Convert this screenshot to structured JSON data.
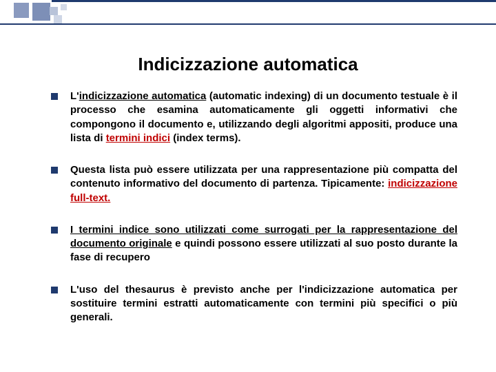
{
  "colors": {
    "accent": "#1f3a6e",
    "highlight": "#c00000",
    "text": "#000000",
    "background": "#ffffff",
    "deco1": "#8a9abf",
    "deco2": "#7d8fb7",
    "deco3": "#b8c3d9",
    "deco4": "#ced6e6",
    "deco5": "#d3dae8"
  },
  "typography": {
    "title_fontsize": 26,
    "body_fontsize": 15,
    "font_family": "Arial"
  },
  "title": "Indicizzazione automatica",
  "bullets": [
    {
      "segments": [
        {
          "text": "L'",
          "bold": true
        },
        {
          "text": "indicizzazione automatica",
          "bold": true,
          "underline": true
        },
        {
          "text": " (automatic indexing) di un documento testuale è il processo che esamina automaticamente gli oggetti informativi che compongono il documento e, utilizzando degli algoritmi appositi, produce una lista di ",
          "bold": true
        },
        {
          "text": "termini indici",
          "bold": true,
          "underline": true,
          "red": true
        },
        {
          "text": " (index terms).",
          "bold": true
        }
      ]
    },
    {
      "segments": [
        {
          "text": "Questa lista può essere utilizzata per una rappresentazione più compatta del contenuto informativo del documento di partenza. Tipicamente: ",
          "bold": true
        },
        {
          "text": "indicizzazione full-text.",
          "bold": true,
          "underline": true,
          "red": true
        }
      ]
    },
    {
      "segments": [
        {
          "text": "I termini indice sono utilizzati come surrogati per la rappresentazione del documento originale",
          "bold": true,
          "underline": true
        },
        {
          "text": " e quindi possono essere utilizzati al suo posto durante la fase di recupero",
          "bold": true
        }
      ]
    },
    {
      "segments": [
        {
          "text": "L'uso del thesaurus è previsto anche per l'indicizzazione automatica per sostituire termini estratti automaticamente con termini più specifici o più generali.",
          "bold": true
        }
      ]
    }
  ]
}
